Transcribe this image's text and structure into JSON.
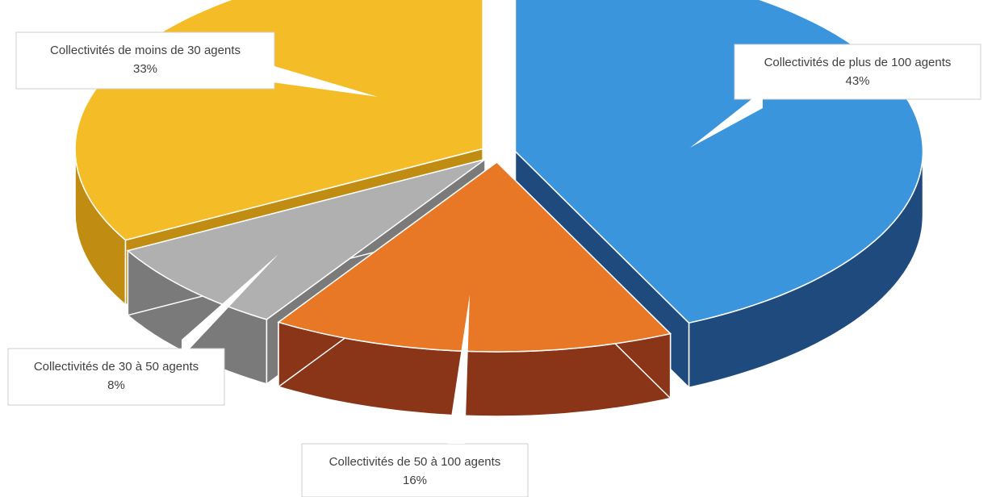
{
  "chart_data": {
    "type": "pie",
    "title": "",
    "slices": [
      {
        "label": "Collectivités de plus de 100 agents",
        "value": 43,
        "value_label": "43%",
        "color": "#3a95dd",
        "side_color": "#1e4a7d"
      },
      {
        "label": "Collectivités de 50 à 100 agents",
        "value": 16,
        "value_label": "16%",
        "color": "#e87726",
        "side_color": "#8a3418"
      },
      {
        "label": "Collectivités de 30 à 50 agents",
        "value": 8,
        "value_label": "8%",
        "color": "#b0b0b0",
        "side_color": "#7a7a7a"
      },
      {
        "label": "Collectivités de moins de 30 agents",
        "value": 33,
        "value_label": "33%",
        "color": "#f4bd27",
        "side_color": "#c08c12"
      }
    ],
    "style": "3d-exploded",
    "legend": "none",
    "data_labels": "callouts"
  }
}
